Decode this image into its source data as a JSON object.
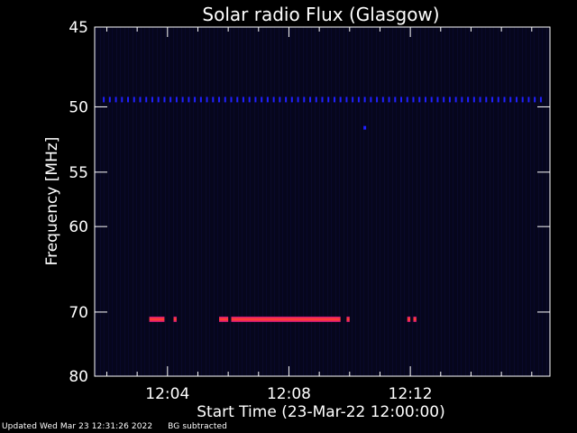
{
  "footer": {
    "updated": "Updated Wed Mar 23 12:31:26 2022",
    "note": "BG subtracted"
  },
  "colors": {
    "background": "#000000",
    "plot_background": "#06061e",
    "axis": "#ffffff",
    "signal_core": "#ff4040",
    "signal_edge": "#d01090",
    "dotted_band": "#2020ff"
  },
  "chart_data": {
    "type": "heatmap",
    "title": "Solar radio Flux (Glasgow)",
    "xlabel": "Start Time (23-Mar-22 12:00:00)",
    "ylabel": "Frequency [MHz]",
    "x_unit": "minutes after 12:00",
    "xlim": [
      1.6,
      16.6
    ],
    "x_ticks": [
      {
        "value": 4,
        "label": "12:04"
      },
      {
        "value": 8,
        "label": "12:08"
      },
      {
        "value": 12,
        "label": "12:12"
      }
    ],
    "ylim": [
      45,
      80
    ],
    "y_scale": "reciprocal",
    "y_ticks": [
      {
        "value": 45,
        "label": "45"
      },
      {
        "value": 50,
        "label": "50"
      },
      {
        "value": 55,
        "label": "55"
      },
      {
        "value": 60,
        "label": "60"
      },
      {
        "value": 70,
        "label": "70"
      },
      {
        "value": 80,
        "label": "80"
      }
    ],
    "features": [
      {
        "kind": "dotted-band",
        "frequency": 49.5,
        "x_start": 1.9,
        "x_end": 16.4,
        "spacing": 0.2
      },
      {
        "kind": "dot",
        "x": 10.5,
        "frequency": 51.5
      },
      {
        "kind": "emission",
        "frequency": 71.0,
        "x_start": 3.4,
        "x_end": 3.9
      },
      {
        "kind": "emission",
        "frequency": 71.0,
        "x_start": 4.2,
        "x_end": 4.3
      },
      {
        "kind": "emission",
        "frequency": 71.0,
        "x_start": 5.7,
        "x_end": 6.0
      },
      {
        "kind": "emission",
        "frequency": 71.0,
        "x_start": 6.1,
        "x_end": 9.7
      },
      {
        "kind": "emission",
        "frequency": 71.0,
        "x_start": 9.9,
        "x_end": 10.0
      },
      {
        "kind": "emission",
        "frequency": 71.0,
        "x_start": 11.9,
        "x_end": 12.0
      },
      {
        "kind": "emission",
        "frequency": 71.0,
        "x_start": 12.1,
        "x_end": 12.2
      }
    ]
  }
}
